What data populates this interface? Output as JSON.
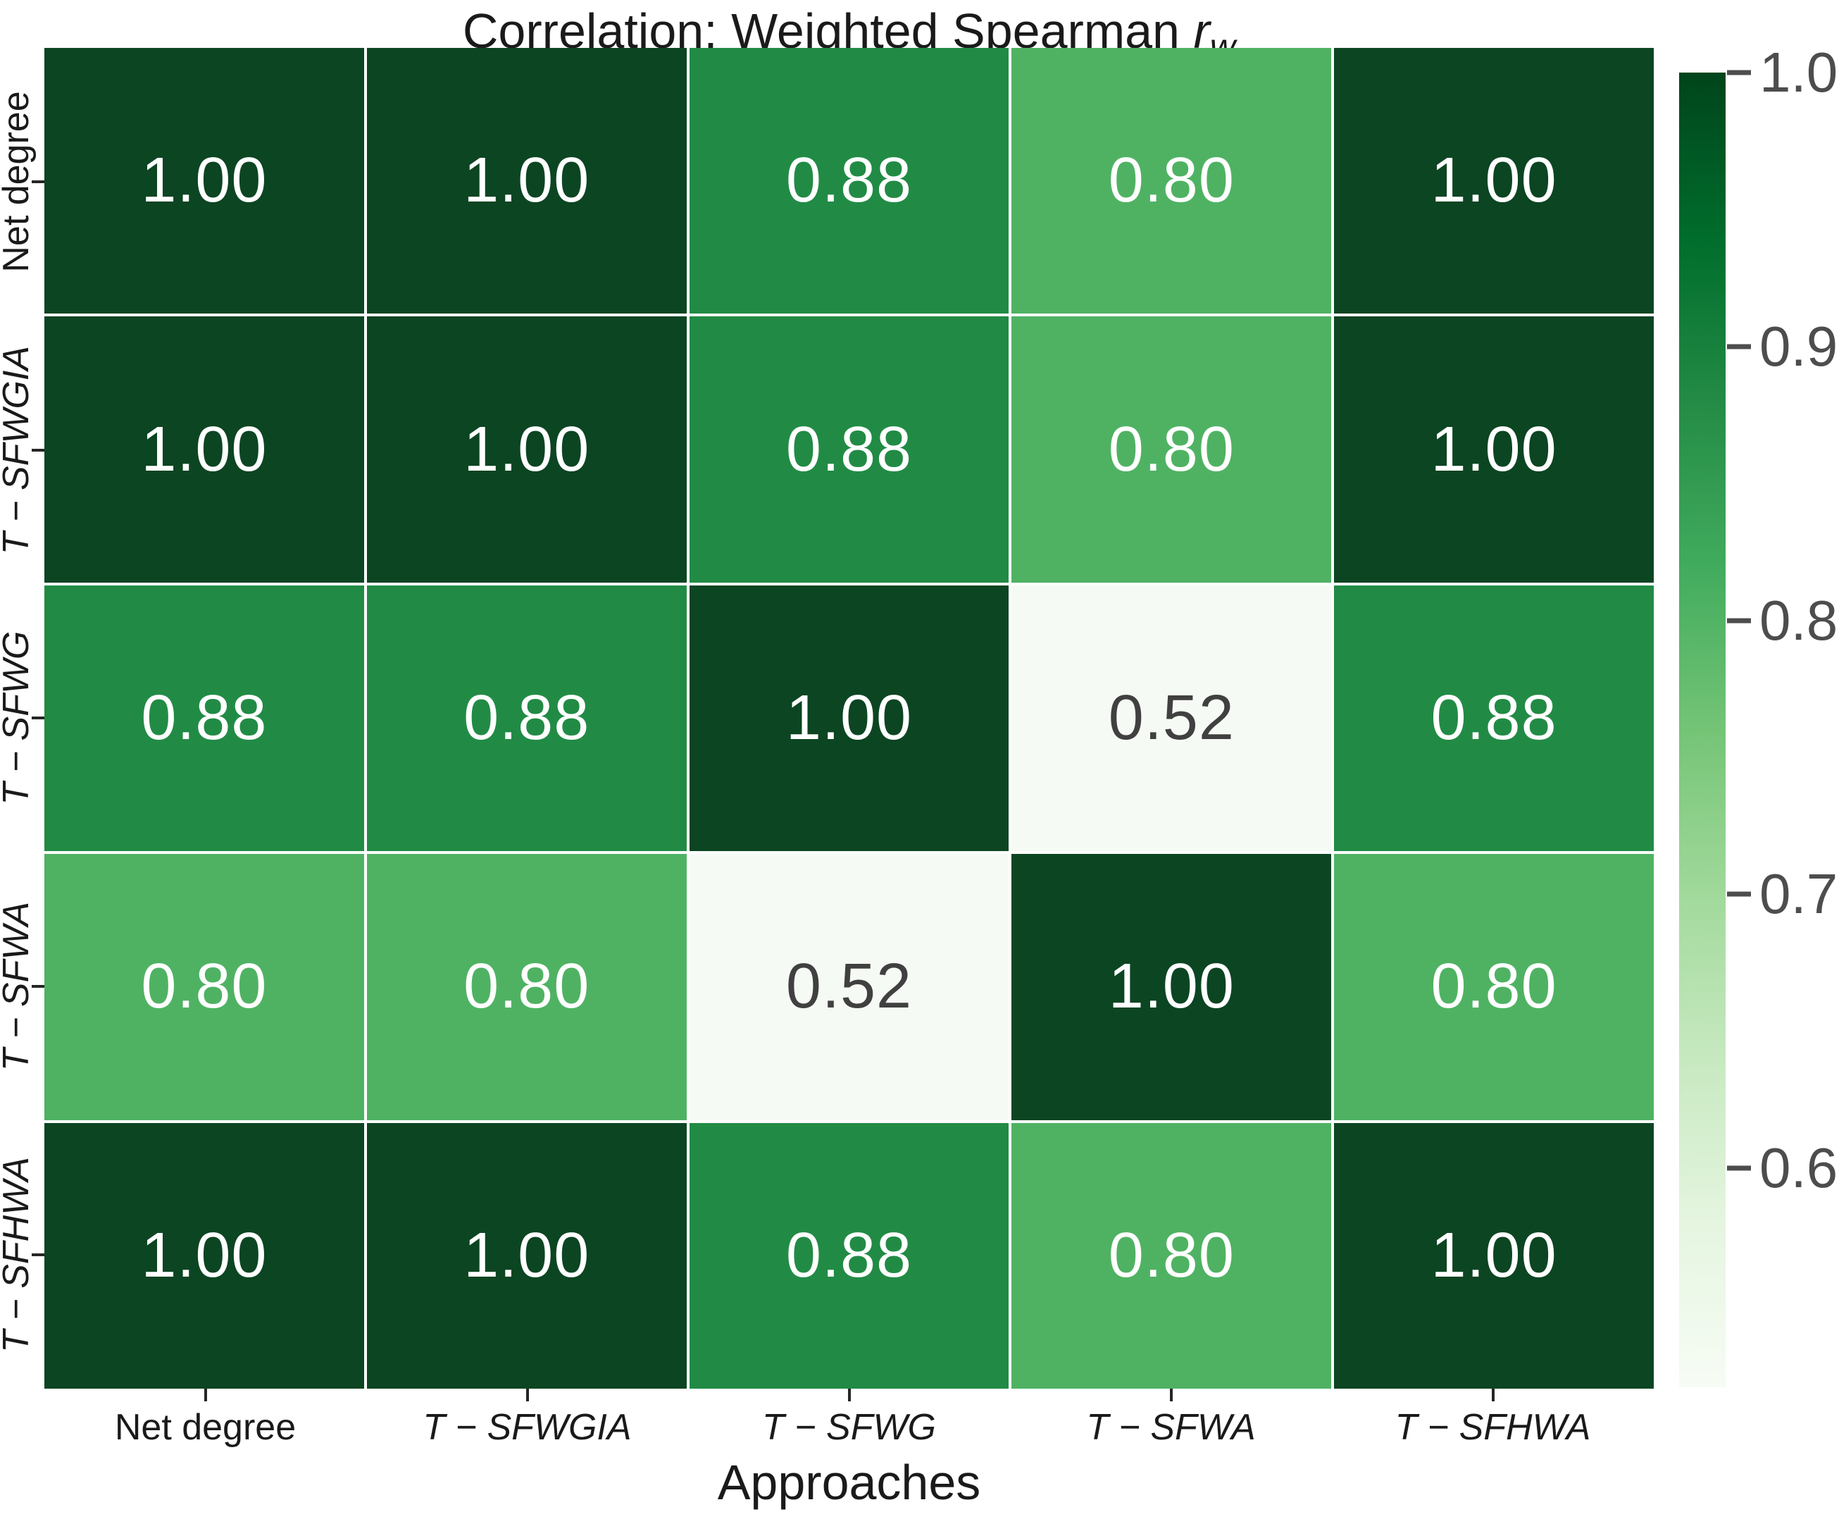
{
  "title": {
    "main": "Correlation: Weighted Spearman ",
    "math_symbol": "r",
    "math_subscript": "w"
  },
  "xaxis": {
    "label": "Approaches"
  },
  "chart_data": {
    "type": "heatmap",
    "title": "Correlation: Weighted Spearman r_w",
    "xlabel": "Approaches",
    "ylabel": "",
    "categories": [
      "Net degree",
      "T − SFWGIA",
      "T − SFWG",
      "T − SFWA",
      "T − SFHWA"
    ],
    "categories_italic": [
      false,
      true,
      true,
      true,
      true
    ],
    "matrix": [
      [
        1.0,
        1.0,
        0.88,
        0.8,
        1.0
      ],
      [
        1.0,
        1.0,
        0.88,
        0.8,
        1.0
      ],
      [
        0.88,
        0.88,
        1.0,
        0.52,
        0.88
      ],
      [
        0.8,
        0.8,
        0.52,
        1.0,
        0.8
      ],
      [
        1.0,
        1.0,
        0.88,
        0.8,
        1.0
      ]
    ],
    "cell_value_decimals": 2,
    "colormap": "Greens",
    "grid": "white-gridlines",
    "legend_position": "right-colorbar",
    "colorbar": {
      "vmin": 0.52,
      "vmax": 1.0,
      "ticks": [
        {
          "label": "1.0",
          "value": 1.0
        },
        {
          "label": "0.9",
          "value": 0.9
        },
        {
          "label": "0.8",
          "value": 0.8
        },
        {
          "label": "0.7",
          "value": 0.7
        },
        {
          "label": "0.6",
          "value": 0.6
        }
      ]
    }
  },
  "colors": {
    "value_fill": {
      "1.00": "#0c4522",
      "0.88": "#218b45",
      "0.80": "#4fb263",
      "0.52": "#f6faf4"
    },
    "cell_text_light": "#ffffff",
    "cell_text_dark": "#404040",
    "dark_text_threshold": 0.7,
    "axis_text": "#1a1a1a",
    "colorbar_tick_color": "#4d4d4d"
  }
}
